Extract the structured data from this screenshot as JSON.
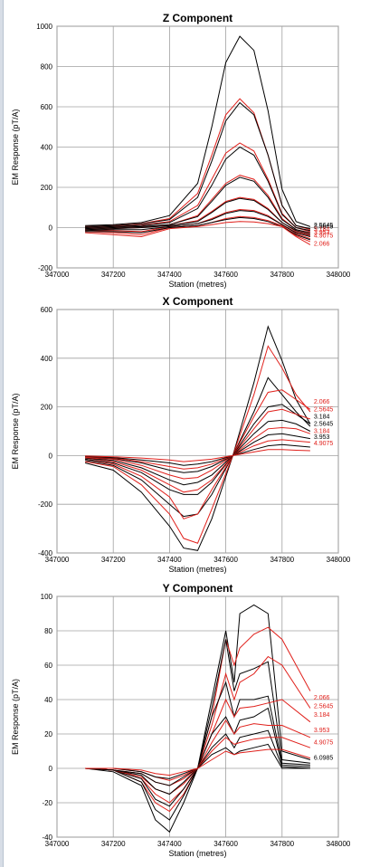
{
  "chart_data": [
    {
      "type": "line",
      "title": "Z Component",
      "xlabel": "Station (metres)",
      "ylabel": "EM Response (pT/A)",
      "xlim": [
        347000,
        348000
      ],
      "ylim": [
        -200,
        1000
      ],
      "xticks": [
        347000,
        347200,
        347400,
        347600,
        347800,
        348000
      ],
      "yticks": [
        -200,
        0,
        200,
        400,
        600,
        800,
        1000
      ],
      "grid": true,
      "colors": {
        "black": "#000000",
        "red": "#e0201b"
      },
      "x": [
        347100,
        347200,
        347300,
        347400,
        347500,
        347550,
        347600,
        347650,
        347700,
        347750,
        347800,
        347850,
        347900
      ],
      "series": [
        {
          "color": "black",
          "values": [
            10,
            15,
            25,
            60,
            220,
            500,
            820,
            950,
            880,
            580,
            190,
            30,
            5
          ]
        },
        {
          "color": "red",
          "values": [
            5,
            10,
            20,
            45,
            170,
            360,
            560,
            640,
            570,
            360,
            110,
            10,
            -10
          ]
        },
        {
          "color": "black",
          "values": [
            5,
            10,
            18,
            40,
            150,
            330,
            530,
            620,
            560,
            360,
            110,
            10,
            -5
          ]
        },
        {
          "color": "red",
          "values": [
            0,
            5,
            12,
            30,
            110,
            240,
            370,
            420,
            380,
            240,
            70,
            0,
            -20
          ]
        },
        {
          "color": "black",
          "values": [
            0,
            5,
            10,
            25,
            95,
            210,
            340,
            400,
            360,
            230,
            65,
            0,
            -15
          ]
        },
        {
          "color": "red",
          "values": [
            -5,
            0,
            5,
            15,
            60,
            140,
            220,
            260,
            240,
            160,
            45,
            -10,
            -30
          ]
        },
        {
          "color": "black",
          "values": [
            -5,
            0,
            5,
            15,
            55,
            130,
            210,
            250,
            230,
            150,
            40,
            -10,
            -25
          ]
        },
        {
          "color": "red",
          "values": [
            -10,
            -5,
            0,
            10,
            35,
            80,
            130,
            150,
            140,
            95,
            25,
            -20,
            -40
          ]
        },
        {
          "color": "black",
          "values": [
            -10,
            -5,
            0,
            10,
            30,
            75,
            125,
            145,
            135,
            90,
            25,
            -15,
            -35
          ]
        },
        {
          "color": "red",
          "values": [
            -15,
            -15,
            -20,
            5,
            20,
            45,
            75,
            90,
            85,
            60,
            15,
            -30,
            -55
          ]
        },
        {
          "color": "black",
          "values": [
            -15,
            -10,
            -10,
            5,
            20,
            40,
            70,
            85,
            80,
            55,
            15,
            -25,
            -45
          ]
        },
        {
          "color": "red",
          "values": [
            -20,
            -25,
            -35,
            0,
            10,
            25,
            45,
            55,
            50,
            35,
            10,
            -40,
            -70
          ]
        },
        {
          "color": "black",
          "values": [
            -20,
            -20,
            -25,
            0,
            10,
            25,
            40,
            50,
            45,
            30,
            5,
            -35,
            -60
          ]
        },
        {
          "color": "red",
          "values": [
            -25,
            -35,
            -45,
            -5,
            5,
            15,
            25,
            30,
            28,
            20,
            5,
            -45,
            -85
          ]
        }
      ],
      "end_labels": [
        {
          "text": "2.5645",
          "color": "black",
          "y": 12
        },
        {
          "text": "2.5645",
          "color": "black",
          "y": 5
        },
        {
          "text": "3.184",
          "color": "red",
          "y": -10
        },
        {
          "text": "3.953",
          "color": "red",
          "y": -25
        },
        {
          "text": "4.9075",
          "color": "red",
          "y": -40
        },
        {
          "text": "2.066",
          "color": "red",
          "y": -80
        }
      ]
    },
    {
      "type": "line",
      "title": "X Component",
      "xlabel": "Station (metres)",
      "ylabel": "EM Response (pT/A)",
      "xlim": [
        347000,
        348000
      ],
      "ylim": [
        -400,
        600
      ],
      "xticks": [
        347000,
        347200,
        347400,
        347600,
        347800,
        348000
      ],
      "yticks": [
        -400,
        -200,
        0,
        200,
        400,
        600
      ],
      "grid": true,
      "colors": {
        "black": "#000000",
        "red": "#e0201b"
      },
      "x": [
        347100,
        347200,
        347300,
        347400,
        347450,
        347500,
        347550,
        347625,
        347700,
        347750,
        347800,
        347850,
        347900
      ],
      "series": [
        {
          "color": "black",
          "values": [
            -30,
            -60,
            -150,
            -290,
            -380,
            -390,
            -260,
            0,
            300,
            530,
            390,
            230,
            130
          ]
        },
        {
          "color": "red",
          "values": [
            -25,
            -45,
            -120,
            -240,
            -340,
            -360,
            -220,
            0,
            250,
            450,
            360,
            250,
            180
          ]
        },
        {
          "color": "black",
          "values": [
            -20,
            -40,
            -100,
            -200,
            -250,
            -240,
            -160,
            0,
            180,
            320,
            250,
            180,
            120
          ]
        },
        {
          "color": "red",
          "values": [
            -15,
            -35,
            -85,
            -170,
            -260,
            -240,
            -140,
            0,
            160,
            260,
            270,
            230,
            190
          ]
        },
        {
          "color": "black",
          "values": [
            -15,
            -30,
            -70,
            -140,
            -160,
            -160,
            -110,
            0,
            130,
            200,
            210,
            170,
            130
          ]
        },
        {
          "color": "red",
          "values": [
            -10,
            -25,
            -60,
            -120,
            -150,
            -140,
            -100,
            0,
            110,
            180,
            190,
            170,
            150
          ]
        },
        {
          "color": "black",
          "values": [
            -10,
            -20,
            -50,
            -100,
            -120,
            -110,
            -80,
            0,
            90,
            140,
            145,
            130,
            100
          ]
        },
        {
          "color": "red",
          "values": [
            -8,
            -15,
            -40,
            -80,
            -95,
            -90,
            -60,
            0,
            70,
            110,
            115,
            110,
            90
          ]
        },
        {
          "color": "black",
          "values": [
            -5,
            -12,
            -30,
            -60,
            -70,
            -65,
            -45,
            0,
            55,
            85,
            90,
            80,
            70
          ]
        },
        {
          "color": "red",
          "values": [
            -5,
            -10,
            -25,
            -45,
            -55,
            -50,
            -35,
            0,
            40,
            60,
            65,
            60,
            55
          ]
        },
        {
          "color": "black",
          "values": [
            -3,
            -8,
            -18,
            -30,
            -40,
            -35,
            -25,
            0,
            25,
            40,
            45,
            40,
            35
          ]
        },
        {
          "color": "red",
          "values": [
            -2,
            -5,
            -10,
            -18,
            -25,
            -20,
            -15,
            0,
            15,
            25,
            25,
            22,
            20
          ]
        }
      ],
      "end_labels": [
        {
          "text": "2.066",
          "color": "red",
          "y": 220
        },
        {
          "text": "2.5645",
          "color": "red",
          "y": 190
        },
        {
          "text": "3.184",
          "color": "black",
          "y": 160
        },
        {
          "text": "2.5645",
          "color": "black",
          "y": 130
        },
        {
          "text": "3.184",
          "color": "red",
          "y": 100
        },
        {
          "text": "3.953",
          "color": "black",
          "y": 75
        },
        {
          "text": "4.9075",
          "color": "red",
          "y": 50
        }
      ]
    },
    {
      "type": "line",
      "title": "Y Component",
      "xlabel": "Station (metres)",
      "ylabel": "EM Response (pT/A)",
      "xlim": [
        347000,
        348000
      ],
      "ylim": [
        -40,
        100
      ],
      "xticks": [
        347000,
        347200,
        347400,
        347600,
        347800,
        348000
      ],
      "yticks": [
        -40,
        -20,
        0,
        20,
        40,
        60,
        80,
        100
      ],
      "grid": true,
      "colors": {
        "black": "#000000",
        "red": "#e0201b"
      },
      "x": [
        347100,
        347200,
        347300,
        347350,
        347400,
        347450,
        347500,
        347550,
        347600,
        347630,
        347650,
        347700,
        347750,
        347800,
        347900
      ],
      "series": [
        {
          "color": "black",
          "values": [
            0,
            -2,
            -10,
            -30,
            -37,
            -20,
            0,
            40,
            80,
            50,
            90,
            95,
            90,
            10,
            5
          ]
        },
        {
          "color": "red",
          "values": [
            0,
            -1,
            -8,
            -20,
            -25,
            -15,
            0,
            30,
            75,
            60,
            70,
            78,
            82,
            75,
            45
          ]
        },
        {
          "color": "black",
          "values": [
            0,
            -1,
            -8,
            -24,
            -30,
            -16,
            0,
            35,
            75,
            45,
            55,
            58,
            62,
            5,
            3
          ]
        },
        {
          "color": "red",
          "values": [
            0,
            -1,
            -6,
            -15,
            -20,
            -12,
            0,
            25,
            55,
            40,
            50,
            55,
            65,
            60,
            35
          ]
        },
        {
          "color": "black",
          "values": [
            0,
            -1,
            -6,
            -18,
            -22,
            -12,
            0,
            30,
            50,
            30,
            40,
            40,
            42,
            3,
            2
          ]
        },
        {
          "color": "red",
          "values": [
            0,
            -1,
            -5,
            -12,
            -15,
            -9,
            0,
            20,
            40,
            30,
            35,
            36,
            38,
            40,
            27
          ]
        },
        {
          "color": "black",
          "values": [
            0,
            -1,
            -4,
            -12,
            -15,
            -8,
            0,
            20,
            30,
            20,
            28,
            30,
            35,
            2,
            1
          ]
        },
        {
          "color": "red",
          "values": [
            0,
            -1,
            -3,
            -8,
            -10,
            -6,
            0,
            15,
            28,
            20,
            24,
            26,
            25,
            25,
            18
          ]
        },
        {
          "color": "black",
          "values": [
            0,
            -1,
            -3,
            -8,
            -10,
            -5,
            0,
            12,
            20,
            12,
            18,
            20,
            22,
            1,
            0
          ]
        },
        {
          "color": "red",
          "values": [
            0,
            0,
            -2,
            -5,
            -7,
            -4,
            0,
            10,
            18,
            14,
            15,
            17,
            18,
            18,
            12
          ]
        },
        {
          "color": "black",
          "values": [
            0,
            0,
            -2,
            -5,
            -6,
            -3,
            0,
            8,
            12,
            8,
            10,
            12,
            14,
            0,
            0
          ]
        },
        {
          "color": "red",
          "values": [
            0,
            0,
            -1,
            -3,
            -4,
            -2,
            0,
            5,
            10,
            8,
            9,
            10,
            11,
            11,
            6
          ]
        }
      ],
      "end_labels": [
        {
          "text": "2.066",
          "color": "red",
          "y": 41
        },
        {
          "text": "2.5645",
          "color": "red",
          "y": 36
        },
        {
          "text": "3.184",
          "color": "red",
          "y": 31
        },
        {
          "text": "3.953",
          "color": "red",
          "y": 22
        },
        {
          "text": "4.9075",
          "color": "red",
          "y": 15
        },
        {
          "text": "6.0985",
          "color": "black",
          "y": 6
        }
      ]
    }
  ]
}
